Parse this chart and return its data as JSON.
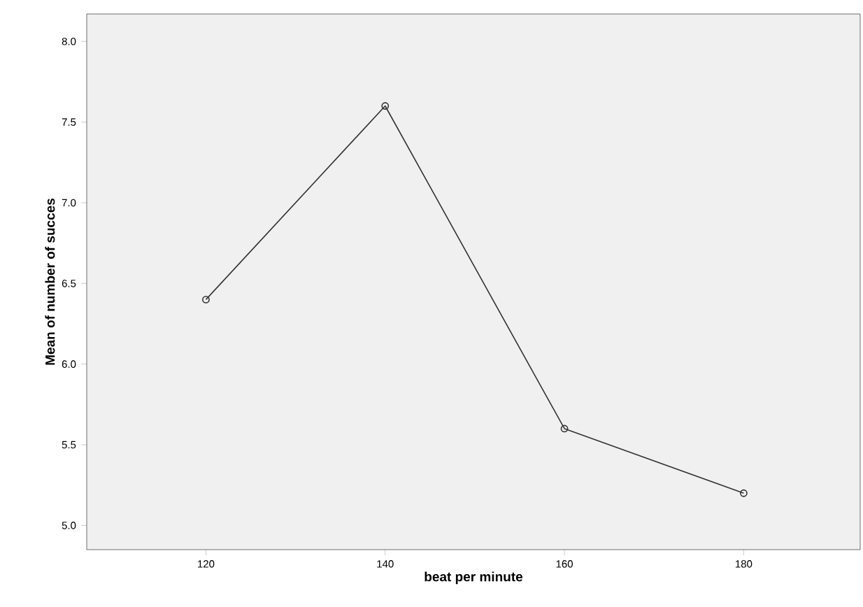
{
  "chart_data": {
    "type": "line",
    "xlabel": "beat per minute",
    "ylabel": "Mean of number of succes",
    "x": [
      120,
      140,
      160,
      180
    ],
    "series": [
      {
        "color": "#333333",
        "values": [
          6.4,
          7.6,
          5.6,
          5.2
        ]
      }
    ],
    "xlim": [
      106.7,
      193
    ],
    "ylim": [
      4.85,
      8.17
    ],
    "xticks": [
      120,
      140,
      160,
      180
    ],
    "yticks": [
      {
        "value": 5,
        "label": "5.0"
      },
      5.5,
      {
        "value": 6,
        "label": "6.0"
      },
      6.5,
      {
        "value": 7,
        "label": "7.0"
      },
      7.5,
      {
        "value": 8,
        "label": "8.0"
      }
    ],
    "marker": "circle",
    "line_style": "solid"
  }
}
